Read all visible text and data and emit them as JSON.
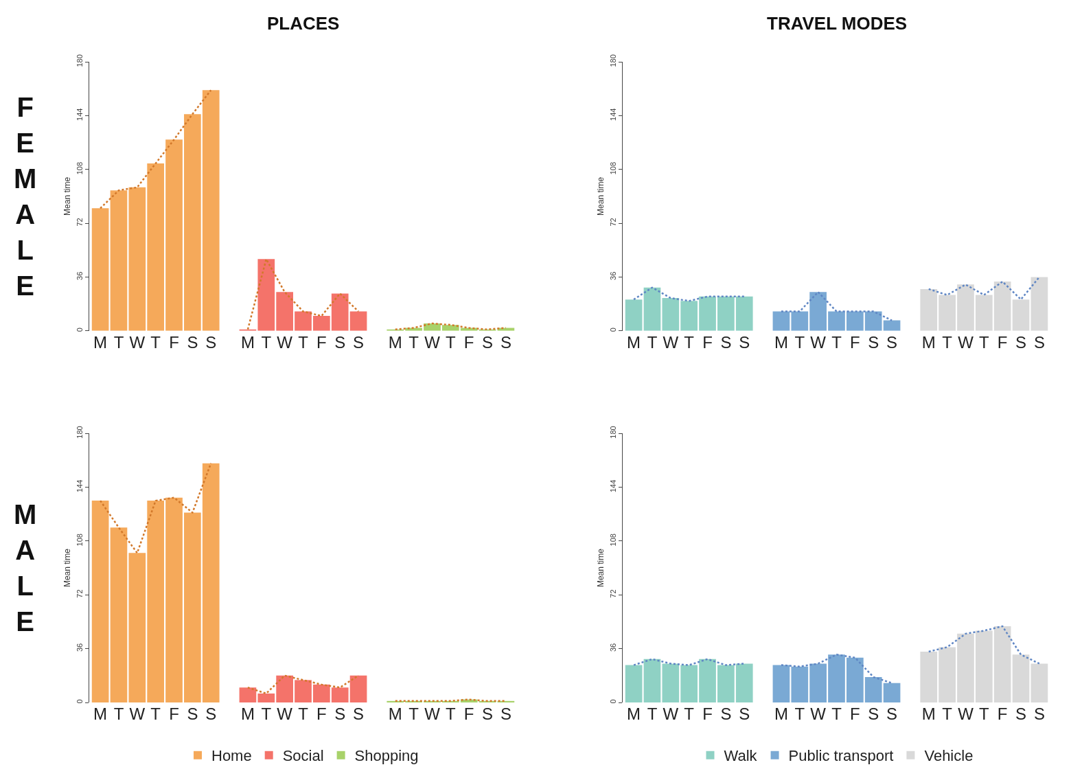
{
  "chart_data": [
    {
      "type": "bar",
      "title": "PLACES",
      "ylabel": "Mean time",
      "annotations": [
        "FEMALE"
      ],
      "categories": [
        "M",
        "T",
        "W",
        "T",
        "F",
        "S",
        "S",
        null,
        "M",
        "T",
        "W",
        "T",
        "F",
        "S",
        "S",
        null,
        "M",
        "T",
        "W",
        "T",
        "F",
        "S",
        "S"
      ],
      "ylim": [
        0,
        180
      ],
      "yticks": [
        0,
        36,
        72,
        108,
        144,
        180
      ],
      "series": [
        {
          "color": "#f5a95a",
          "values": [
            82,
            94,
            96,
            112,
            128,
            145,
            161,
            null,
            null,
            null,
            null,
            null,
            null,
            null,
            null,
            null,
            null,
            null,
            null,
            null,
            null,
            null,
            null
          ]
        },
        {
          "color": "#f4736a",
          "values": [
            null,
            null,
            null,
            null,
            null,
            null,
            null,
            null,
            1,
            48,
            26,
            13,
            10,
            25,
            13,
            null,
            null,
            null,
            null,
            null,
            null,
            null,
            null
          ]
        },
        {
          "color": "#a8d26a",
          "values": [
            null,
            null,
            null,
            null,
            null,
            null,
            null,
            null,
            null,
            null,
            null,
            null,
            null,
            null,
            null,
            null,
            1,
            2,
            5,
            4,
            2,
            1,
            2
          ]
        },
        {
          "type": "line",
          "color": "#d2782a",
          "line_style": "dotted",
          "values": [
            82,
            94,
            96,
            112,
            128,
            145,
            161,
            null,
            1,
            48,
            26,
            13,
            10,
            25,
            13,
            null,
            1,
            2,
            5,
            4,
            2,
            1,
            2
          ]
        }
      ]
    },
    {
      "type": "bar",
      "title": "TRAVEL MODES",
      "ylabel": "Mean time",
      "categories": [
        "M",
        "T",
        "W",
        "T",
        "F",
        "S",
        "S",
        null,
        "M",
        "T",
        "W",
        "T",
        "F",
        "S",
        "S",
        null,
        "M",
        "T",
        "W",
        "T",
        "F",
        "S",
        "S"
      ],
      "ylim": [
        0,
        180
      ],
      "yticks": [
        0,
        36,
        72,
        108,
        144,
        180
      ],
      "series": [
        {
          "color": "#8fd1c4",
          "values": [
            21,
            29,
            22,
            20,
            23,
            23,
            23,
            null,
            null,
            null,
            null,
            null,
            null,
            null,
            null,
            null,
            null,
            null,
            null,
            null,
            null,
            null,
            null
          ]
        },
        {
          "color": "#7aa9d4",
          "values": [
            null,
            null,
            null,
            null,
            null,
            null,
            null,
            null,
            13,
            13,
            26,
            13,
            13,
            13,
            7,
            null,
            null,
            null,
            null,
            null,
            null,
            null,
            null
          ]
        },
        {
          "color": "#d9d9d9",
          "values": [
            null,
            null,
            null,
            null,
            null,
            null,
            null,
            null,
            null,
            null,
            null,
            null,
            null,
            null,
            null,
            null,
            28,
            24,
            31,
            24,
            33,
            21,
            36
          ]
        },
        {
          "type": "line",
          "color": "#5f86c4",
          "line_style": "dotted",
          "values": [
            21,
            29,
            22,
            20,
            23,
            23,
            23,
            null,
            13,
            13,
            26,
            13,
            13,
            13,
            7,
            null,
            28,
            24,
            31,
            24,
            33,
            21,
            36
          ]
        }
      ]
    },
    {
      "type": "bar",
      "ylabel": "Mean time",
      "annotations": [
        "MALE"
      ],
      "legend": "bottom",
      "categories": [
        "M",
        "T",
        "W",
        "T",
        "F",
        "S",
        "S",
        null,
        "M",
        "T",
        "W",
        "T",
        "F",
        "S",
        "S",
        null,
        "M",
        "T",
        "W",
        "T",
        "F",
        "S",
        "S"
      ],
      "ylim": [
        0,
        180
      ],
      "yticks": [
        0,
        36,
        72,
        108,
        144,
        180
      ],
      "series": [
        {
          "name": "Home",
          "color": "#f5a95a",
          "values": [
            135,
            117,
            100,
            135,
            137,
            127,
            160,
            null,
            null,
            null,
            null,
            null,
            null,
            null,
            null,
            null,
            null,
            null,
            null,
            null,
            null,
            null,
            null
          ]
        },
        {
          "name": "Social",
          "color": "#f4736a",
          "values": [
            null,
            null,
            null,
            null,
            null,
            null,
            null,
            null,
            10,
            6,
            18,
            15,
            12,
            10,
            18,
            null,
            null,
            null,
            null,
            null,
            null,
            null,
            null
          ]
        },
        {
          "name": "Shopping",
          "color": "#a8d26a",
          "values": [
            null,
            null,
            null,
            null,
            null,
            null,
            null,
            null,
            null,
            null,
            null,
            null,
            null,
            null,
            null,
            null,
            1,
            1,
            1,
            1,
            2,
            1,
            1
          ]
        },
        {
          "type": "line",
          "color": "#d2782a",
          "line_style": "dotted",
          "values": [
            135,
            117,
            100,
            135,
            137,
            127,
            160,
            null,
            10,
            6,
            18,
            15,
            12,
            10,
            18,
            null,
            1,
            1,
            1,
            1,
            2,
            1,
            1
          ]
        }
      ]
    },
    {
      "type": "bar",
      "ylabel": "Mean time",
      "legend": "bottom",
      "categories": [
        "M",
        "T",
        "W",
        "T",
        "F",
        "S",
        "S",
        null,
        "M",
        "T",
        "W",
        "T",
        "F",
        "S",
        "S",
        null,
        "M",
        "T",
        "W",
        "T",
        "F",
        "S",
        "S"
      ],
      "ylim": [
        0,
        180
      ],
      "yticks": [
        0,
        36,
        72,
        108,
        144,
        180
      ],
      "series": [
        {
          "name": "Walk",
          "color": "#8fd1c4",
          "values": [
            25,
            29,
            26,
            25,
            29,
            25,
            26,
            null,
            null,
            null,
            null,
            null,
            null,
            null,
            null,
            null,
            null,
            null,
            null,
            null,
            null,
            null,
            null
          ]
        },
        {
          "name": "Public transport",
          "color": "#7aa9d4",
          "values": [
            null,
            null,
            null,
            null,
            null,
            null,
            null,
            null,
            25,
            24,
            26,
            32,
            30,
            17,
            13,
            null,
            null,
            null,
            null,
            null,
            null,
            null,
            null
          ]
        },
        {
          "name": "Vehicle",
          "color": "#d9d9d9",
          "values": [
            null,
            null,
            null,
            null,
            null,
            null,
            null,
            null,
            null,
            null,
            null,
            null,
            null,
            null,
            null,
            null,
            34,
            37,
            46,
            48,
            51,
            32,
            26
          ]
        },
        {
          "type": "line",
          "color": "#5f86c4",
          "line_style": "dotted",
          "values": [
            25,
            29,
            26,
            25,
            29,
            25,
            26,
            null,
            25,
            24,
            26,
            32,
            30,
            17,
            13,
            null,
            34,
            37,
            46,
            48,
            51,
            32,
            26
          ]
        }
      ]
    }
  ]
}
